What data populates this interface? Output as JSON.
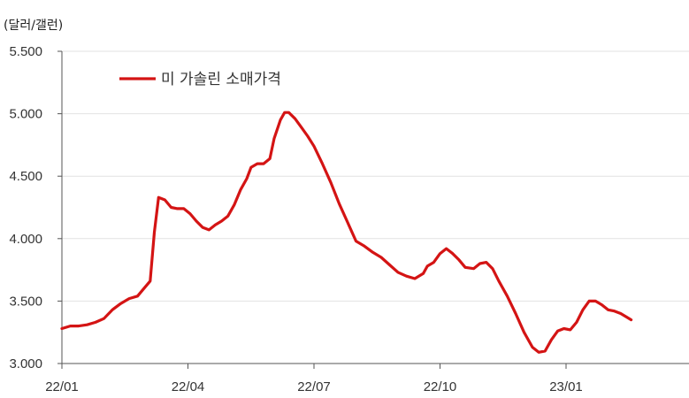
{
  "chart_data": {
    "type": "line",
    "unit_label": "(달러/갤런)",
    "y_ticks": [
      "5.500",
      "5.000",
      "4.500",
      "4.000",
      "3.500",
      "3.000"
    ],
    "y_tick_values": [
      5.5,
      5.0,
      4.5,
      4.0,
      3.5,
      3.0
    ],
    "ylim": [
      3.0,
      5.5
    ],
    "x_ticks": [
      "22/01",
      "22/04",
      "22/07",
      "22/10",
      "23/01"
    ],
    "x_tick_months": [
      0,
      3,
      6,
      9,
      12
    ],
    "xlim_months": [
      0,
      15
    ],
    "grid": "horizontal",
    "legend_position": "top-left",
    "series": [
      {
        "name": "미 가솔린 소매가격",
        "color": "#d41414",
        "points": [
          [
            0.0,
            3.28
          ],
          [
            0.2,
            3.3
          ],
          [
            0.4,
            3.3
          ],
          [
            0.6,
            3.31
          ],
          [
            0.8,
            3.33
          ],
          [
            1.0,
            3.36
          ],
          [
            1.2,
            3.43
          ],
          [
            1.4,
            3.48
          ],
          [
            1.6,
            3.52
          ],
          [
            1.8,
            3.54
          ],
          [
            1.95,
            3.6
          ],
          [
            2.1,
            3.66
          ],
          [
            2.2,
            4.05
          ],
          [
            2.3,
            4.33
          ],
          [
            2.45,
            4.31
          ],
          [
            2.6,
            4.25
          ],
          [
            2.75,
            4.24
          ],
          [
            2.9,
            4.24
          ],
          [
            3.05,
            4.2
          ],
          [
            3.2,
            4.14
          ],
          [
            3.35,
            4.09
          ],
          [
            3.5,
            4.07
          ],
          [
            3.65,
            4.11
          ],
          [
            3.8,
            4.14
          ],
          [
            3.95,
            4.18
          ],
          [
            4.1,
            4.27
          ],
          [
            4.25,
            4.39
          ],
          [
            4.4,
            4.48
          ],
          [
            4.5,
            4.57
          ],
          [
            4.65,
            4.6
          ],
          [
            4.8,
            4.6
          ],
          [
            4.95,
            4.64
          ],
          [
            5.05,
            4.8
          ],
          [
            5.2,
            4.95
          ],
          [
            5.3,
            5.01
          ],
          [
            5.4,
            5.01
          ],
          [
            5.55,
            4.96
          ],
          [
            5.7,
            4.89
          ],
          [
            5.85,
            4.82
          ],
          [
            6.0,
            4.74
          ],
          [
            6.2,
            4.6
          ],
          [
            6.4,
            4.45
          ],
          [
            6.6,
            4.28
          ],
          [
            6.8,
            4.13
          ],
          [
            7.0,
            3.98
          ],
          [
            7.2,
            3.94
          ],
          [
            7.4,
            3.89
          ],
          [
            7.6,
            3.85
          ],
          [
            7.8,
            3.79
          ],
          [
            8.0,
            3.73
          ],
          [
            8.2,
            3.7
          ],
          [
            8.4,
            3.68
          ],
          [
            8.6,
            3.72
          ],
          [
            8.7,
            3.78
          ],
          [
            8.85,
            3.81
          ],
          [
            9.0,
            3.88
          ],
          [
            9.15,
            3.92
          ],
          [
            9.3,
            3.88
          ],
          [
            9.45,
            3.83
          ],
          [
            9.6,
            3.77
          ],
          [
            9.8,
            3.76
          ],
          [
            9.95,
            3.8
          ],
          [
            10.1,
            3.81
          ],
          [
            10.25,
            3.76
          ],
          [
            10.4,
            3.66
          ],
          [
            10.6,
            3.54
          ],
          [
            10.8,
            3.4
          ],
          [
            11.0,
            3.25
          ],
          [
            11.2,
            3.13
          ],
          [
            11.35,
            3.09
          ],
          [
            11.5,
            3.1
          ],
          [
            11.65,
            3.19
          ],
          [
            11.8,
            3.26
          ],
          [
            11.95,
            3.28
          ],
          [
            12.1,
            3.27
          ],
          [
            12.25,
            3.33
          ],
          [
            12.4,
            3.43
          ],
          [
            12.55,
            3.5
          ],
          [
            12.7,
            3.5
          ],
          [
            12.85,
            3.47
          ],
          [
            13.0,
            3.43
          ],
          [
            13.15,
            3.42
          ],
          [
            13.3,
            3.4
          ],
          [
            13.45,
            3.37
          ],
          [
            13.55,
            3.35
          ]
        ]
      }
    ]
  }
}
